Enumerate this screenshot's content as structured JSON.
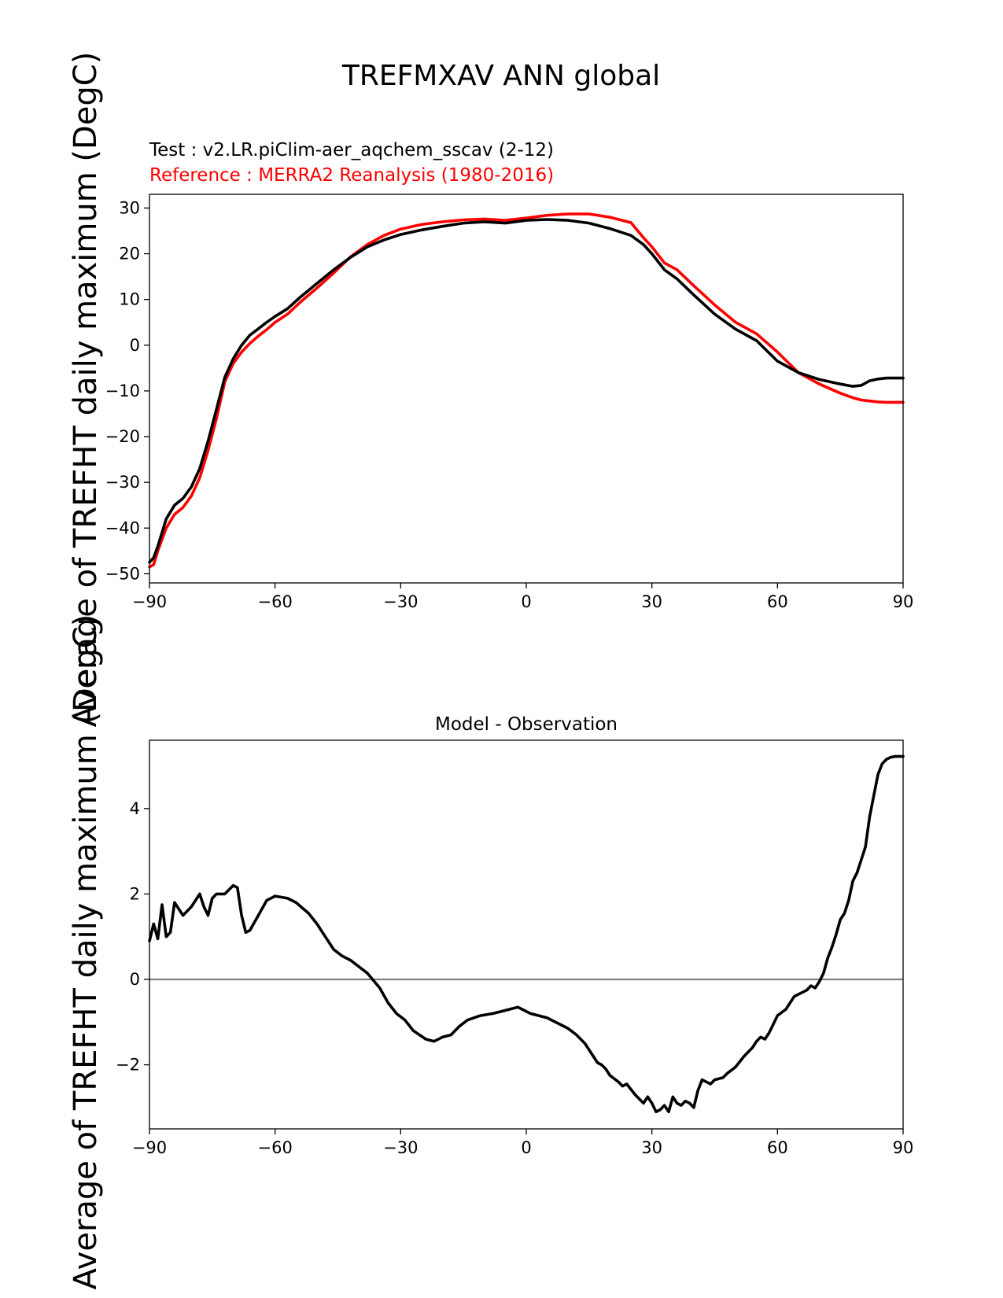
{
  "figure_title": "TREFMXAV ANN global",
  "chart_data": [
    {
      "type": "line",
      "name": "zonal-mean",
      "test_label": "Test : v2.LR.piClim-aer_aqchem_sscav (2-12)",
      "reference_label": "Reference : MERRA2 Reanalysis (1980-2016)",
      "ylabel": "Average of TREFHT daily maximum (DegC)",
      "xlim": [
        -90,
        90
      ],
      "ylim": [
        -52,
        33
      ],
      "xticks": [
        -90,
        -60,
        -30,
        0,
        30,
        60,
        90
      ],
      "xtick_labels": [
        "−90",
        "−60",
        "−30",
        "0",
        "30",
        "60",
        "90"
      ],
      "yticks": [
        -50,
        -40,
        -30,
        -20,
        -10,
        0,
        10,
        20,
        30
      ],
      "ytick_labels": [
        "−50",
        "−40",
        "−30",
        "−20",
        "−10",
        "0",
        "10",
        "20",
        "30"
      ],
      "series": [
        {
          "role": "test",
          "color": "#000000",
          "x": [
            -90,
            -89,
            -88,
            -86,
            -84,
            -82,
            -80,
            -78,
            -76,
            -74,
            -72,
            -70,
            -68,
            -66,
            -64,
            -62,
            -60,
            -57,
            -54,
            -50,
            -46,
            -42,
            -38,
            -34,
            -30,
            -25,
            -20,
            -15,
            -10,
            -5,
            0,
            5,
            10,
            15,
            20,
            25,
            28,
            30,
            33,
            36,
            40,
            45,
            50,
            55,
            60,
            65,
            70,
            75,
            78,
            80,
            82,
            84,
            86,
            88,
            90
          ],
          "y": [
            -47.5,
            -46.5,
            -44,
            -38,
            -35,
            -33.5,
            -31,
            -27,
            -21,
            -14,
            -7,
            -3,
            0,
            2.2,
            3.6,
            5,
            6.3,
            8,
            10.5,
            13.5,
            16.5,
            19.2,
            21.5,
            23,
            24.2,
            25.2,
            26,
            26.7,
            27,
            26.7,
            27.3,
            27.5,
            27.3,
            26.7,
            25.5,
            24,
            22,
            20,
            16.5,
            14.5,
            11,
            6.8,
            3.5,
            1,
            -3.5,
            -6,
            -7.5,
            -8.5,
            -9,
            -8.8,
            -7.8,
            -7.4,
            -7.2,
            -7.2,
            -7.2
          ]
        },
        {
          "role": "reference",
          "color": "#ff0000",
          "x": [
            -90,
            -89,
            -88,
            -86,
            -84,
            -82,
            -80,
            -78,
            -76,
            -74,
            -72,
            -70,
            -68,
            -66,
            -64,
            -62,
            -60,
            -57,
            -54,
            -50,
            -46,
            -42,
            -38,
            -34,
            -30,
            -25,
            -20,
            -15,
            -10,
            -5,
            0,
            5,
            10,
            15,
            20,
            25,
            28,
            30,
            33,
            36,
            40,
            45,
            50,
            55,
            60,
            65,
            70,
            75,
            78,
            80,
            82,
            84,
            86,
            88,
            90
          ],
          "y": [
            -48.5,
            -48,
            -45,
            -40,
            -37,
            -35.5,
            -33,
            -29,
            -23,
            -16,
            -8,
            -4,
            -1.5,
            0.4,
            2,
            3.4,
            5,
            6.8,
            9.4,
            12.5,
            15.8,
            19.3,
            22,
            24,
            25.4,
            26.4,
            27,
            27.4,
            27.6,
            27.3,
            27.8,
            28.4,
            28.7,
            28.7,
            28,
            26.8,
            23.5,
            21.5,
            18,
            16.5,
            13,
            8.8,
            5,
            2.5,
            -1.5,
            -6,
            -8.5,
            -10.5,
            -11.5,
            -12,
            -12.2,
            -12.4,
            -12.5,
            -12.5,
            -12.5
          ]
        }
      ]
    },
    {
      "type": "line",
      "name": "difference",
      "title": "Model - Observation",
      "ylabel": "Average of TREFHT daily maximum (DegC)",
      "xlim": [
        -90,
        90
      ],
      "ylim": [
        -3.5,
        5.6
      ],
      "xticks": [
        -90,
        -60,
        -30,
        0,
        30,
        60,
        90
      ],
      "xtick_labels": [
        "−90",
        "−60",
        "−30",
        "0",
        "30",
        "60",
        "90"
      ],
      "yticks": [
        -2,
        0,
        2,
        4
      ],
      "ytick_labels": [
        "−2",
        "0",
        "2",
        "4"
      ],
      "zero_line_color": "#808080",
      "series": [
        {
          "role": "difference",
          "color": "#000000",
          "x": [
            -90,
            -89,
            -88,
            -87,
            -86,
            -85,
            -84,
            -82,
            -80,
            -78,
            -77,
            -76,
            -75,
            -74,
            -72,
            -70,
            -69,
            -68,
            -67,
            -66,
            -64,
            -62,
            -60,
            -57,
            -55,
            -52,
            -50,
            -48,
            -46,
            -44,
            -42,
            -40,
            -38,
            -35,
            -33,
            -31,
            -29,
            -27,
            -24,
            -22,
            -20,
            -18,
            -16,
            -14,
            -11,
            -8,
            -6,
            -4,
            -2,
            -1,
            0,
            1,
            3,
            5,
            6,
            7,
            8,
            10,
            12,
            14,
            16,
            17,
            18,
            19,
            20,
            22,
            23,
            24,
            26,
            28,
            29,
            30,
            31,
            32,
            33,
            34,
            35,
            36,
            37,
            38,
            39,
            40,
            41,
            42,
            43,
            44,
            45,
            47,
            48,
            50,
            52,
            54,
            55,
            56,
            57,
            58,
            60,
            62,
            64,
            65,
            66,
            67,
            68,
            69,
            70,
            71,
            72,
            73,
            74,
            75,
            76,
            77,
            78,
            79,
            80,
            81,
            82,
            83,
            84,
            85,
            86,
            87,
            88,
            90
          ],
          "y": [
            0.9,
            1.3,
            0.95,
            1.75,
            1.0,
            1.1,
            1.8,
            1.5,
            1.7,
            2.0,
            1.7,
            1.5,
            1.9,
            2.0,
            2.0,
            2.2,
            2.15,
            1.5,
            1.1,
            1.15,
            1.5,
            1.85,
            1.95,
            1.9,
            1.8,
            1.55,
            1.3,
            1.0,
            0.7,
            0.55,
            0.45,
            0.3,
            0.15,
            -0.2,
            -0.55,
            -0.8,
            -0.95,
            -1.2,
            -1.4,
            -1.45,
            -1.35,
            -1.3,
            -1.1,
            -0.95,
            -0.85,
            -0.8,
            -0.75,
            -0.7,
            -0.65,
            -0.7,
            -0.75,
            -0.8,
            -0.85,
            -0.9,
            -0.95,
            -1.0,
            -1.05,
            -1.15,
            -1.3,
            -1.5,
            -1.8,
            -1.95,
            -2.0,
            -2.1,
            -2.25,
            -2.4,
            -2.5,
            -2.45,
            -2.7,
            -2.9,
            -2.75,
            -2.9,
            -3.1,
            -3.05,
            -2.95,
            -3.1,
            -2.75,
            -2.9,
            -2.95,
            -2.85,
            -2.9,
            -3.0,
            -2.6,
            -2.35,
            -2.4,
            -2.45,
            -2.35,
            -2.3,
            -2.2,
            -2.05,
            -1.8,
            -1.6,
            -1.45,
            -1.35,
            -1.4,
            -1.25,
            -0.85,
            -0.7,
            -0.4,
            -0.35,
            -0.3,
            -0.25,
            -0.15,
            -0.2,
            -0.05,
            0.15,
            0.5,
            0.75,
            1.05,
            1.4,
            1.55,
            1.85,
            2.3,
            2.5,
            2.8,
            3.1,
            3.8,
            4.3,
            4.8,
            5.05,
            5.15,
            5.2,
            5.22,
            5.22
          ]
        }
      ]
    }
  ]
}
